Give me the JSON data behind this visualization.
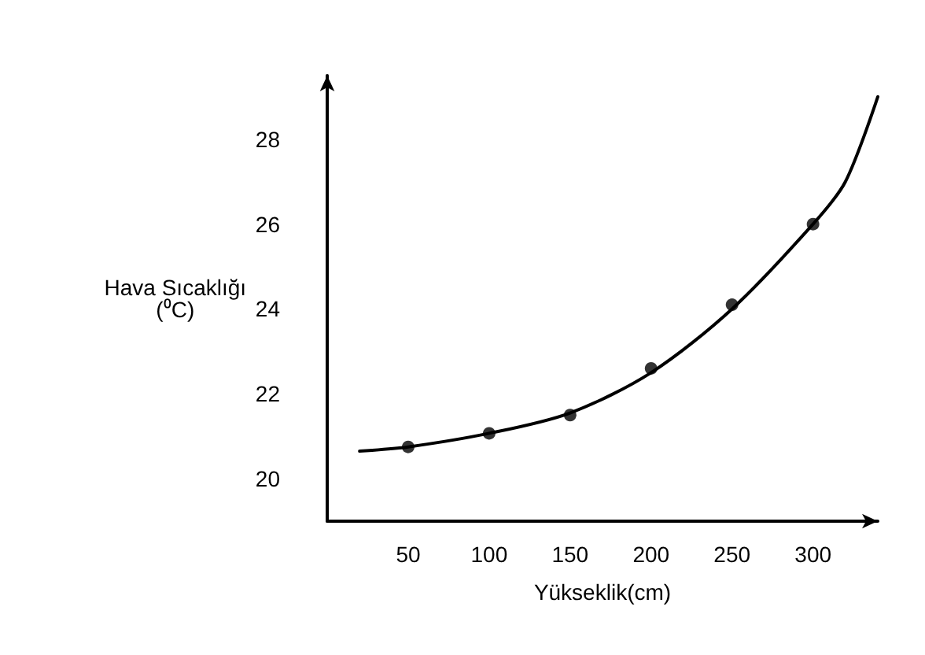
{
  "chart_data": {
    "type": "scatter",
    "xlabel": "Yükseklik(cm)",
    "ylabel": "Hava Sıcaklığı\n(⁰C)",
    "xlim": [
      0,
      340
    ],
    "xticks": [
      50,
      100,
      150,
      200,
      250,
      300
    ],
    "ylim": [
      19,
      29.5
    ],
    "yticks": [
      20,
      22,
      24,
      26,
      28
    ],
    "grid": false,
    "series": [
      {
        "type": "line",
        "color": "#000000",
        "marker": "none",
        "line_style": "solid",
        "x": [
          20,
          50,
          100,
          150,
          200,
          250,
          300,
          320,
          340
        ],
        "values": [
          20.65,
          20.75,
          21.07,
          21.55,
          22.5,
          24.0,
          26.0,
          27.0,
          29.0
        ]
      },
      {
        "color": "#000000",
        "marker": "circle",
        "x": [
          50,
          100,
          150,
          200,
          250,
          300
        ],
        "values": [
          20.75,
          21.07,
          21.5,
          22.6,
          24.1,
          26.0
        ]
      }
    ]
  }
}
